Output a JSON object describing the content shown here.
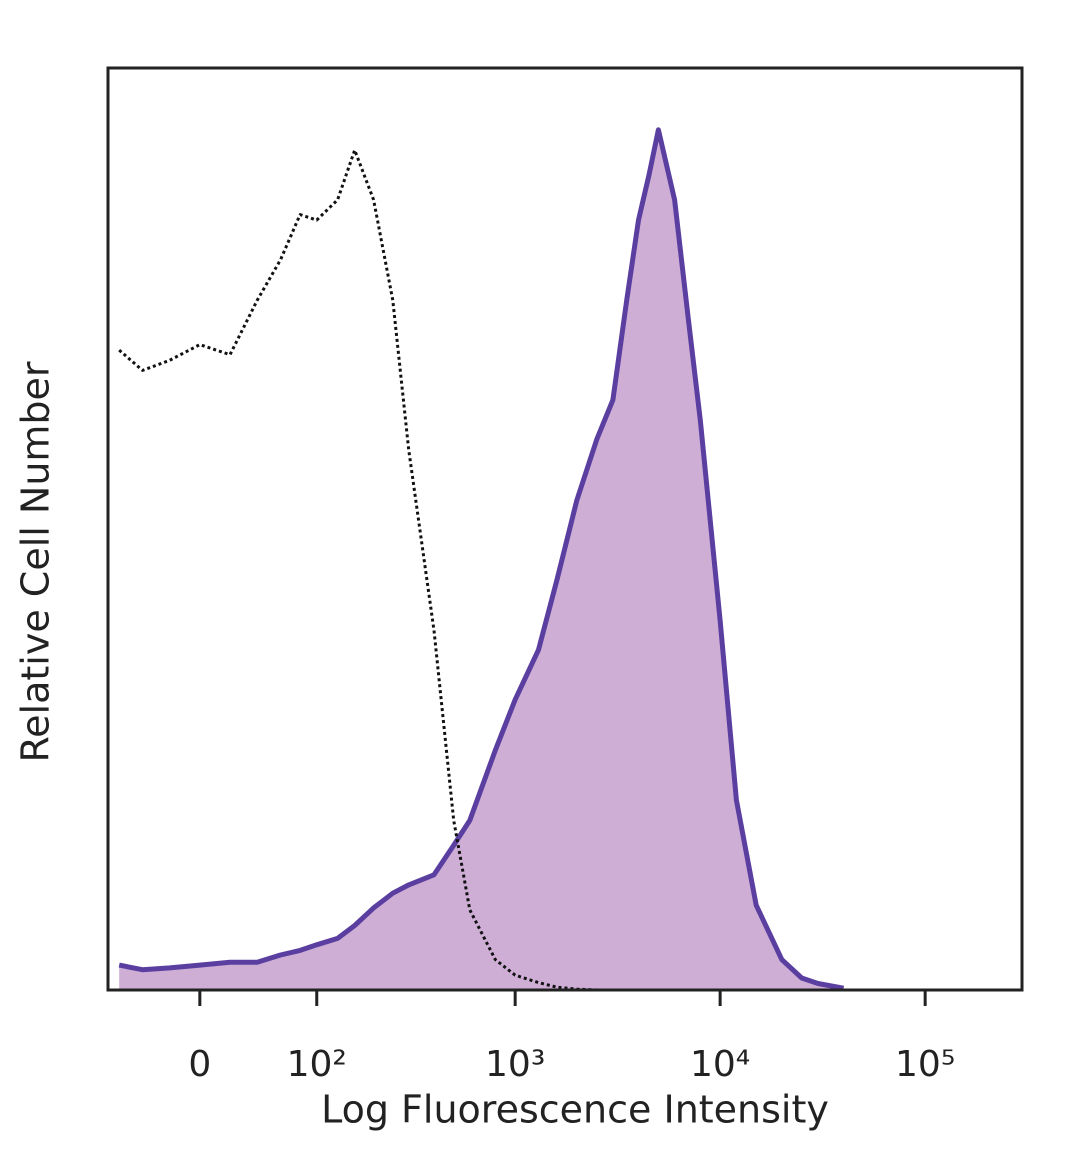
{
  "chart_data": {
    "type": "histogram-overlay",
    "xlabel": "Log Fluorescence Intensity",
    "ylabel": "Relative Cell Number",
    "xscale": "biexponential",
    "xlim": [
      -71,
      296700
    ],
    "ylim": [
      0,
      100
    ],
    "xticks": [
      0,
      {
        "value": 100,
        "label": "10²"
      },
      {
        "value": 1000,
        "label": "10³"
      },
      {
        "value": 10000,
        "label": "10⁴"
      },
      {
        "value": 100000,
        "label": "10⁵"
      }
    ],
    "x": [
      -60,
      -40,
      -20,
      0,
      20,
      40,
      60,
      80,
      100,
      130,
      160,
      200,
      250,
      300,
      400,
      500,
      600,
      800,
      1000,
      1300,
      1600,
      2000,
      2500,
      3000,
      3500,
      4000,
      4500,
      5000,
      6000,
      7000,
      8000,
      10000,
      12000,
      15000,
      20000,
      25000,
      30000,
      40000
    ],
    "series": [
      {
        "color": "#5b3fa0",
        "fill": "#cfaed6",
        "style": "solid",
        "values": [
          2.7,
          2.2,
          2.4,
          2.7,
          3.0,
          3.0,
          3.8,
          4.3,
          4.9,
          5.6,
          7.0,
          8.9,
          10.5,
          11.4,
          12.5,
          15.7,
          18.4,
          26.0,
          31.5,
          36.9,
          44.5,
          53.1,
          59.7,
          64,
          74.8,
          83.5,
          88.4,
          93.3,
          85.7,
          72.7,
          61.8,
          40.1,
          20.6,
          9.2,
          3.3,
          1.3,
          0.7,
          0.2
        ]
      },
      {
        "color": "#111111",
        "style": "dotted",
        "values": [
          69.4,
          67.2,
          68.3,
          70.0,
          68.9,
          74.8,
          79.2,
          84.1,
          83.5,
          85.7,
          91.1,
          85.7,
          74.8,
          58.6,
          39.0,
          18.4,
          8.7,
          3.3,
          1.6,
          0.8,
          0.3,
          0.1,
          0,
          0,
          0,
          0,
          0,
          0,
          0,
          0,
          0,
          0,
          0,
          0,
          0,
          0,
          0,
          0
        ]
      }
    ]
  }
}
